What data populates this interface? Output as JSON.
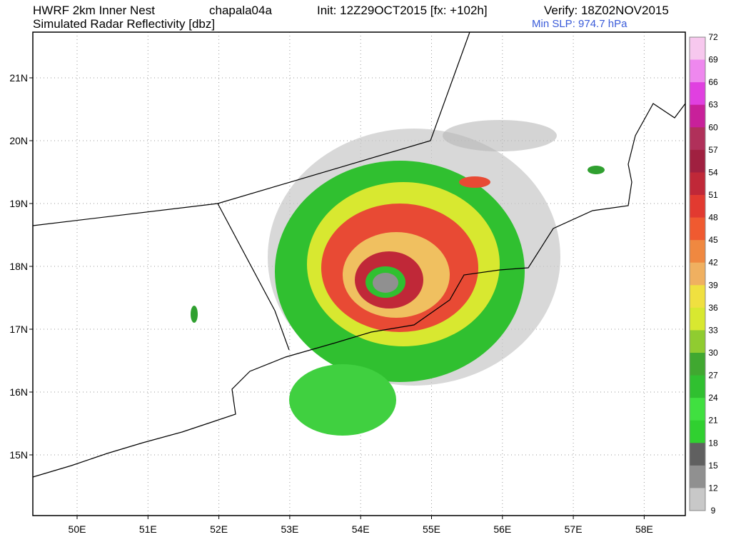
{
  "header": {
    "model": "HWRF 2km Inner Nest",
    "run": "chapala04a",
    "init": "Init: 12Z29OCT2015 [fx: +102h]",
    "verify": "Verify: 18Z02NOV2015",
    "field": "Simulated Radar Reflectivity [dbz]",
    "min_slp": "Min SLP: 974.7 hPa"
  },
  "map": {
    "lat_labels": [
      "21N",
      "20N",
      "19N",
      "18N",
      "17N",
      "16N",
      "15N"
    ],
    "lon_labels": [
      "50E",
      "51E",
      "52E",
      "53E",
      "54E",
      "55E",
      "56E",
      "57E",
      "58E"
    ]
  },
  "colorbar": {
    "ticks": [
      72,
      69,
      66,
      63,
      60,
      57,
      54,
      51,
      48,
      45,
      42,
      39,
      36,
      33,
      30,
      27,
      24,
      21,
      18,
      15,
      12,
      9
    ],
    "colors": [
      "#f7c8ee",
      "#ee88ee",
      "#e040e0",
      "#c8209a",
      "#b0305a",
      "#a02040",
      "#c02838",
      "#e23a30",
      "#f05a30",
      "#f08840",
      "#f0b060",
      "#f0e040",
      "#d8e830",
      "#90cc30",
      "#40a830",
      "#30c030",
      "#40e040",
      "#30d030",
      "#606060",
      "#909090",
      "#c8c8c8"
    ]
  }
}
